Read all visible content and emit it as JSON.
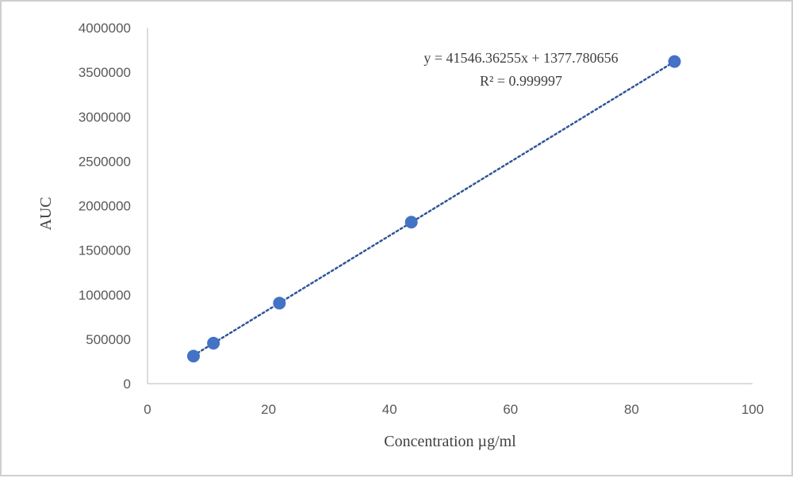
{
  "chart_data": {
    "type": "scatter",
    "xlabel": "Concentration µg/ml",
    "ylabel": "AUC",
    "xlim": [
      0,
      100
    ],
    "ylim": [
      0,
      4000000
    ],
    "x_ticks": [
      "0",
      "20",
      "40",
      "60",
      "80",
      "100"
    ],
    "y_ticks": [
      "0",
      "500000",
      "1000000",
      "1500000",
      "2000000",
      "2500000",
      "3000000",
      "3500000",
      "4000000"
    ],
    "grid": false,
    "legend": false,
    "series": [
      {
        "x": [
          7.6,
          10.9,
          21.8,
          43.6,
          87.1
        ],
        "y": [
          310000,
          455000,
          905000,
          1815000,
          3620000
        ],
        "marker_color": "#4472c4"
      }
    ],
    "trendline": {
      "type": "linear",
      "slope": 41546.36255,
      "intercept": 1377.780656,
      "x_range": [
        7.6,
        87.1
      ],
      "style": "dotted",
      "color": "#2f5597",
      "equation_label": "y = 41546.36255x  + 1377.780656",
      "r2_label": "R² = 0.999997"
    }
  }
}
